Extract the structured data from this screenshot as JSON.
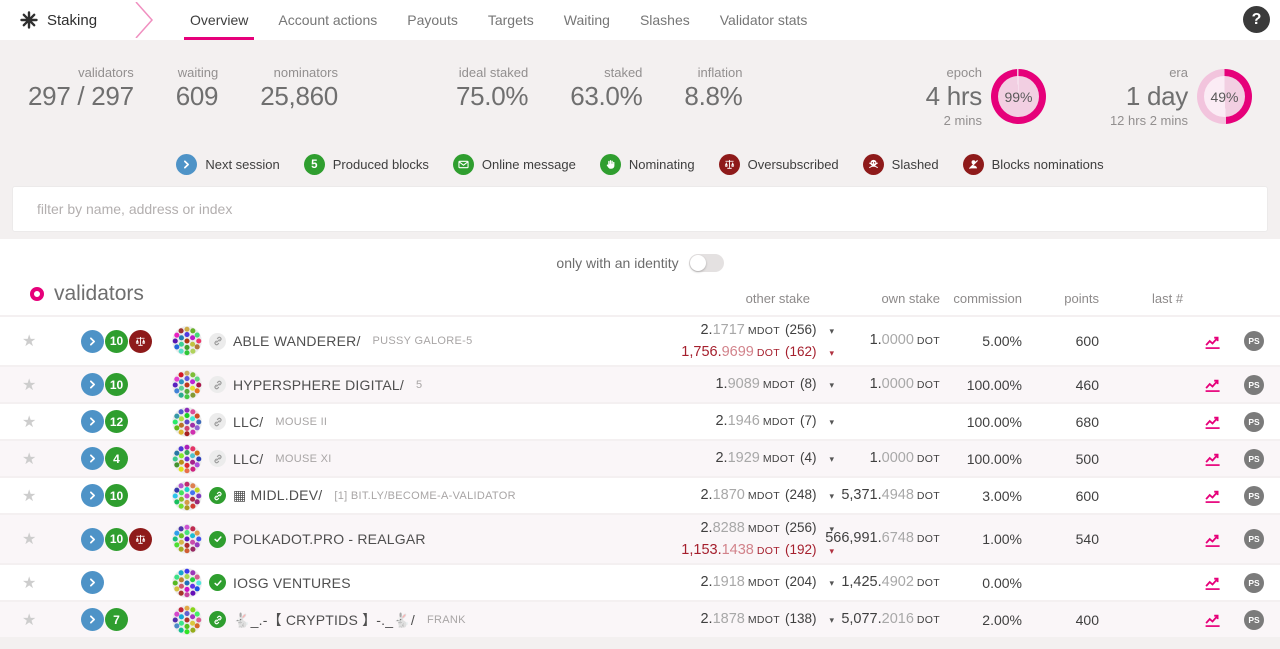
{
  "colors": {
    "accent_pink": "#e6007a",
    "badge_blue": "#4e93c7",
    "badge_green": "#2f9e2f",
    "badge_red": "#8e1a1a",
    "red_text": "#a51f2d"
  },
  "nav": {
    "app_label": "Staking",
    "help_label": "?",
    "tabs": [
      {
        "label": "Overview",
        "active": true
      },
      {
        "label": "Account actions",
        "active": false
      },
      {
        "label": "Payouts",
        "active": false
      },
      {
        "label": "Targets",
        "active": false
      },
      {
        "label": "Waiting",
        "active": false
      },
      {
        "label": "Slashes",
        "active": false
      },
      {
        "label": "Validator stats",
        "active": false
      }
    ]
  },
  "summary": {
    "left": [
      {
        "label": "validators",
        "value": "297 / 297"
      },
      {
        "label": "waiting",
        "value": "609"
      },
      {
        "label": "nominators",
        "value": "25,860"
      }
    ],
    "middle": [
      {
        "label": "ideal staked",
        "value": "75.0%"
      },
      {
        "label": "staked",
        "value": "63.0%"
      },
      {
        "label": "inflation",
        "value": "8.8%"
      }
    ],
    "epoch": {
      "label": "epoch",
      "value": "4 hrs",
      "sub": "2 mins",
      "percent": 99,
      "percent_label": "99%"
    },
    "era": {
      "label": "era",
      "value": "1 day",
      "sub": "12 hrs 2 mins",
      "percent": 49,
      "percent_label": "49%"
    }
  },
  "legend": [
    {
      "icon": "next-session",
      "color": "blue",
      "glyph": "chevron-right",
      "label": "Next session"
    },
    {
      "icon": "produced-blocks",
      "color": "green",
      "text": "5",
      "label": "Produced blocks"
    },
    {
      "icon": "online-message",
      "color": "green",
      "glyph": "envelope",
      "label": "Online message"
    },
    {
      "icon": "nominating",
      "color": "green",
      "glyph": "hand",
      "label": "Nominating"
    },
    {
      "icon": "oversubscribed",
      "color": "red",
      "glyph": "scales",
      "label": "Oversubscribed"
    },
    {
      "icon": "slashed",
      "color": "red",
      "glyph": "skull",
      "label": "Slashed"
    },
    {
      "icon": "blocks-nominations",
      "color": "red",
      "glyph": "person-slash",
      "label": "Blocks nominations"
    }
  ],
  "filter": {
    "placeholder": "filter by name, address or index"
  },
  "identity_toggle": {
    "label": "only with an identity",
    "on": false
  },
  "table": {
    "title": "validators",
    "columns": [
      "other stake",
      "own stake",
      "commission",
      "points",
      "last #"
    ],
    "ps_label": "PS",
    "rows": [
      {
        "name": "ABLE WANDERER",
        "sub": "PUSSY GALORE-5",
        "identity_icon": "link-gray",
        "badges": {
          "next": true,
          "blocks": "10",
          "oversubscribed": true
        },
        "other_stake": {
          "int": "2.",
          "dec": "1717",
          "unit": "MDOT",
          "count": "(256)"
        },
        "other_stake_red": {
          "int": "1,756.",
          "dec": "9699",
          "unit": "DOT",
          "count": "(162)"
        },
        "own_stake": {
          "int": "1.",
          "dec": "0000",
          "unit": "DOT"
        },
        "commission": "5.00%",
        "points": "600"
      },
      {
        "name": "HYPERSPHERE DIGITAL",
        "sub": "5",
        "identity_icon": "link-gray",
        "badges": {
          "next": true,
          "blocks": "10",
          "oversubscribed": false
        },
        "other_stake": {
          "int": "1.",
          "dec": "9089",
          "unit": "MDOT",
          "count": "(8)"
        },
        "other_stake_red": null,
        "own_stake": {
          "int": "1.",
          "dec": "0000",
          "unit": "DOT"
        },
        "commission": "100.00%",
        "points": "460"
      },
      {
        "name": "LLC",
        "sub": "MOUSE II",
        "identity_icon": "link-gray",
        "badges": {
          "next": true,
          "blocks": "12",
          "oversubscribed": false
        },
        "other_stake": {
          "int": "2.",
          "dec": "1946",
          "unit": "MDOT",
          "count": "(7)"
        },
        "other_stake_red": null,
        "own_stake": null,
        "commission": "100.00%",
        "points": "680"
      },
      {
        "name": "LLC",
        "sub": "MOUSE XI",
        "identity_icon": "link-gray",
        "badges": {
          "next": true,
          "blocks": "4",
          "oversubscribed": false
        },
        "other_stake": {
          "int": "2.",
          "dec": "1929",
          "unit": "MDOT",
          "count": "(4)"
        },
        "other_stake_red": null,
        "own_stake": {
          "int": "1.",
          "dec": "0000",
          "unit": "DOT"
        },
        "commission": "100.00%",
        "points": "500"
      },
      {
        "name": "▦ MIDL.DEV",
        "sub": "[1] BIT.LY/BECOME-A-VALIDATOR",
        "identity_icon": "link-green",
        "badges": {
          "next": true,
          "blocks": "10",
          "oversubscribed": false
        },
        "other_stake": {
          "int": "2.",
          "dec": "1870",
          "unit": "MDOT",
          "count": "(248)"
        },
        "other_stake_red": null,
        "own_stake": {
          "int": "5,371.",
          "dec": "4948",
          "unit": "DOT"
        },
        "commission": "3.00%",
        "points": "600"
      },
      {
        "name": "POLKADOT.PRO - REALGAR",
        "sub": "",
        "identity_icon": "check-green",
        "badges": {
          "next": true,
          "blocks": "10",
          "oversubscribed": true
        },
        "other_stake": {
          "int": "2.",
          "dec": "8288",
          "unit": "MDOT",
          "count": "(256)"
        },
        "other_stake_red": {
          "int": "1,153.",
          "dec": "1438",
          "unit": "DOT",
          "count": "(192)"
        },
        "own_stake": {
          "int": "566,991.",
          "dec": "6748",
          "unit": "DOT"
        },
        "commission": "1.00%",
        "points": "540"
      },
      {
        "name": "IOSG VENTURES",
        "sub": "",
        "identity_icon": "check-green",
        "badges": {
          "next": true,
          "blocks": "",
          "oversubscribed": false
        },
        "other_stake": {
          "int": "2.",
          "dec": "1918",
          "unit": "MDOT",
          "count": "(204)"
        },
        "other_stake_red": null,
        "own_stake": {
          "int": "1,425.",
          "dec": "4902",
          "unit": "DOT"
        },
        "commission": "0.00%",
        "points": ""
      },
      {
        "name": "🐇_.-【 CRYPTIDS 】-._🐇",
        "sub": "FRANK",
        "identity_icon": "link-green",
        "badges": {
          "next": true,
          "blocks": "7",
          "oversubscribed": false
        },
        "other_stake": {
          "int": "2.",
          "dec": "1878",
          "unit": "MDOT",
          "count": "(138)"
        },
        "other_stake_red": null,
        "own_stake": {
          "int": "5,077.",
          "dec": "2016",
          "unit": "DOT"
        },
        "commission": "2.00%",
        "points": "400"
      }
    ]
  }
}
